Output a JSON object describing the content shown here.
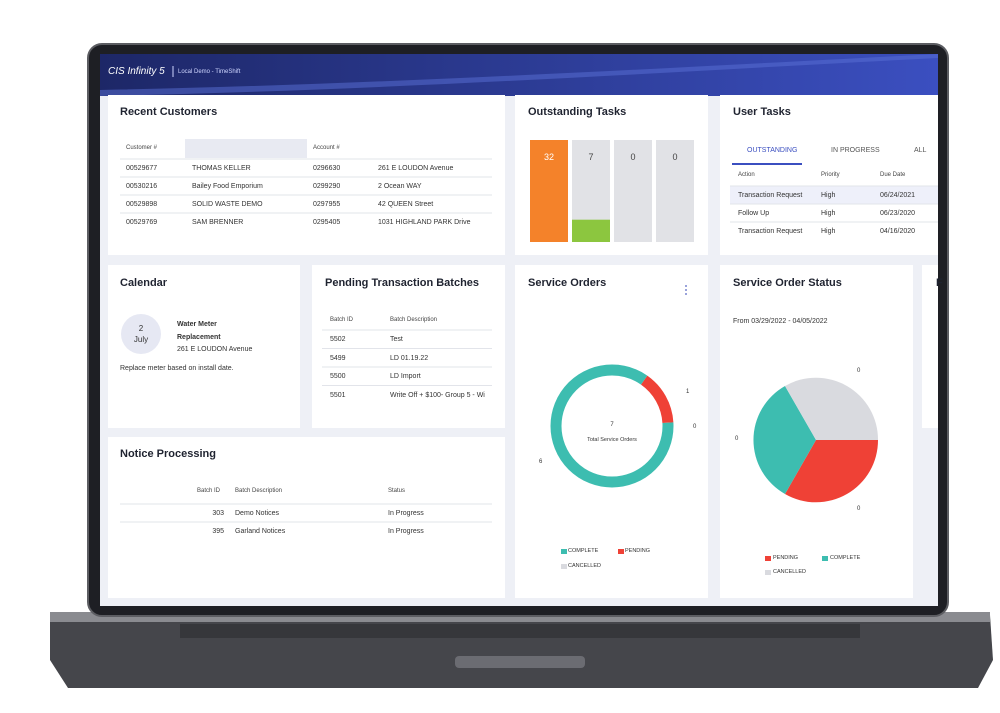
{
  "header": {
    "brand": "CIS Infinity 5",
    "environment": "Local Demo - TimeShift"
  },
  "recent_customers": {
    "title": "Recent Customers",
    "columns": [
      "Customer #",
      "Account #"
    ],
    "rows": [
      [
        "00529677",
        "THOMAS KELLER",
        "0296630",
        "261 E LOUDON Avenue"
      ],
      [
        "00530216",
        "Bailey Food Emporium",
        "0299290",
        "2 Ocean WAY"
      ],
      [
        "00529898",
        "SOLID WASTE DEMO",
        "0297955",
        "42 QUEEN Street"
      ],
      [
        "00529769",
        "SAM BRENNER",
        "0295405",
        "1031 HIGHLAND PARK Drive"
      ]
    ]
  },
  "outstanding_tasks": {
    "title": "Outstanding Tasks",
    "counts": [
      32,
      7,
      0,
      0
    ],
    "colors": [
      "#f4822a",
      "#8cc63f",
      "#8cc63f",
      "#8cc63f"
    ]
  },
  "user_tasks": {
    "title": "User Tasks",
    "tabs": [
      "OUTSTANDING",
      "IN PROGRESS",
      "ALL"
    ],
    "columns": [
      "Action",
      "Priority",
      "Due Date"
    ],
    "rows": [
      [
        "Transaction Request",
        "High",
        "06/24/2021"
      ],
      [
        "Follow Up",
        "High",
        "06/23/2020"
      ],
      [
        "Transaction Request",
        "High",
        "04/16/2020"
      ]
    ]
  },
  "calendar": {
    "title": "Calendar",
    "day": "2",
    "month": "July",
    "event": "Water Meter Replacement",
    "address": "261 E LOUDON Avenue",
    "note": "Replace meter based on install date."
  },
  "pending_batches": {
    "title": "Pending Transaction Batches",
    "columns": [
      "Batch ID",
      "Batch Description"
    ],
    "rows": [
      [
        "5502",
        "Test"
      ],
      [
        "5499",
        "LD 01.19.22"
      ],
      [
        "5500",
        "LD Import"
      ],
      [
        "5501",
        "Write Off + $100- Group 5 - Wi"
      ]
    ]
  },
  "notice_processing": {
    "title": "Notice Processing",
    "columns": [
      "Batch ID",
      "Batch Description",
      "Status"
    ],
    "rows": [
      [
        "303",
        "Demo Notices",
        "In Progress"
      ],
      [
        "395",
        "Garland Notices",
        "In Progress"
      ]
    ]
  },
  "service_orders": {
    "title": "Service Orders",
    "total": 7,
    "total_label": "Total Service Orders",
    "slices": [
      {
        "name": "PENDING",
        "value": 1,
        "color": "#ef4136"
      },
      {
        "name": "COMPLETE",
        "value": 6,
        "color": "#3dbdb0"
      },
      {
        "name": "CANCELLED",
        "value": 0,
        "color": "#d9dadf"
      }
    ]
  },
  "service_order_status": {
    "title": "Service Order Status",
    "range": "From 03/29/2022 - 04/05/2022",
    "legend": [
      {
        "name": "PENDING",
        "color": "#ef4136"
      },
      {
        "name": "COMPLETE",
        "color": "#3dbdb0"
      },
      {
        "name": "CANCELLED",
        "color": "#d9dadf"
      }
    ],
    "labels": [
      0,
      0,
      0
    ]
  },
  "cut_card": {
    "title": "F"
  }
}
